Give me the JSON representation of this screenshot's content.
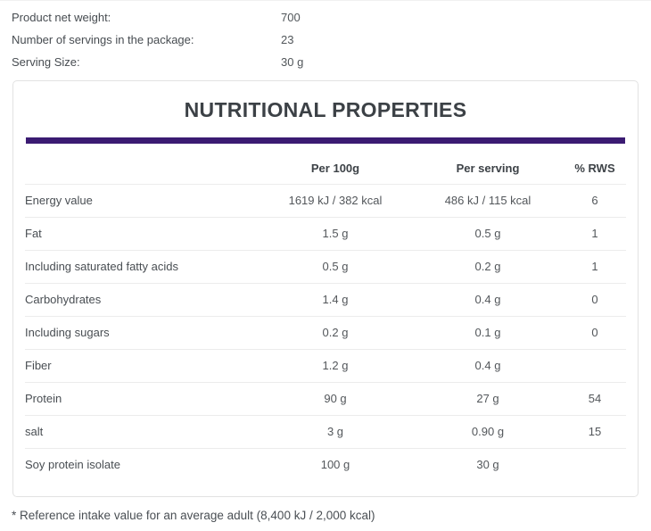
{
  "info_rows": [
    {
      "label": "Product net weight:",
      "value": "700"
    },
    {
      "label": "Number of servings in the package:",
      "value": "23"
    },
    {
      "label": "Serving Size:",
      "value": "30 g"
    }
  ],
  "panel": {
    "title": "NUTRITIONAL PROPERTIES",
    "accent_color": "#3b1b72"
  },
  "table": {
    "headers": {
      "label": "",
      "per_100g": "Per 100g",
      "per_serving": "Per serving",
      "rws": "% RWS"
    },
    "rows": [
      {
        "label": "Energy value",
        "per_100g": "1619 kJ / 382 kcal",
        "per_serving": "486 kJ / 115 kcal",
        "rws": "6"
      },
      {
        "label": "Fat",
        "per_100g": "1.5 g",
        "per_serving": "0.5 g",
        "rws": "1"
      },
      {
        "label": "Including saturated fatty acids",
        "per_100g": "0.5 g",
        "per_serving": "0.2 g",
        "rws": "1"
      },
      {
        "label": "Carbohydrates",
        "per_100g": "1.4 g",
        "per_serving": "0.4 g",
        "rws": "0"
      },
      {
        "label": "Including sugars",
        "per_100g": "0.2 g",
        "per_serving": "0.1 g",
        "rws": "0"
      },
      {
        "label": "Fiber",
        "per_100g": "1.2 g",
        "per_serving": "0.4 g",
        "rws": ""
      },
      {
        "label": "Protein",
        "per_100g": "90 g",
        "per_serving": "27 g",
        "rws": "54"
      },
      {
        "label": "salt",
        "per_100g": "3 g",
        "per_serving": "0.90 g",
        "rws": "15"
      },
      {
        "label": "Soy protein isolate",
        "per_100g": "100 g",
        "per_serving": "30 g",
        "rws": ""
      }
    ]
  },
  "footnote": "* Reference intake value for an average adult (8,400 kJ / 2,000 kcal)"
}
